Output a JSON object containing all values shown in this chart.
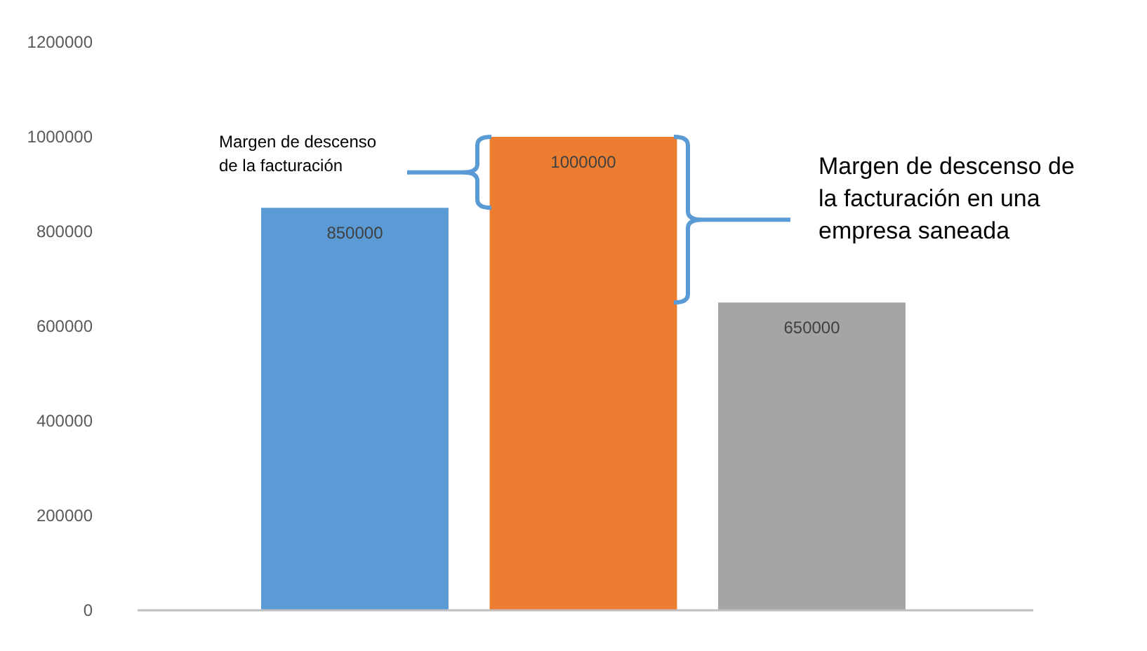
{
  "chart_data": {
    "type": "bar",
    "categories": [
      null,
      null,
      null
    ],
    "values": [
      850000,
      1000000,
      650000
    ],
    "colors": [
      "#5b9bd5",
      "#ed7d31",
      "#a5a5a5"
    ],
    "ylim": [
      0,
      1200000
    ],
    "yticks": [
      0,
      200000,
      400000,
      600000,
      800000,
      1000000,
      1200000
    ],
    "grid": false,
    "data_labels": true,
    "annotations": [
      "Margen de descenso de la facturación",
      "Margen de descenso de la facturación en una empresa saneada"
    ]
  }
}
